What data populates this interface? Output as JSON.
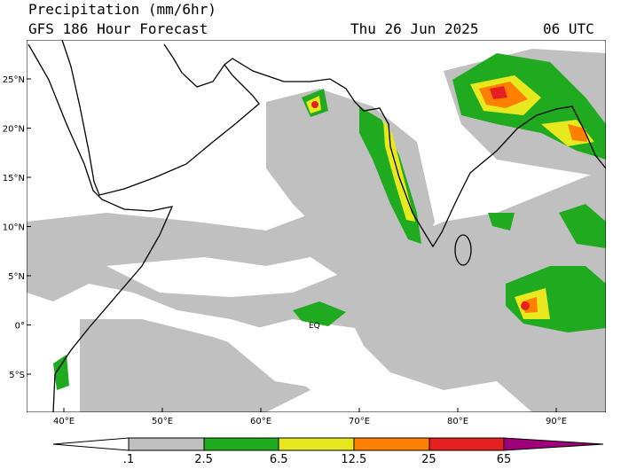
{
  "header": {
    "title": "Precipitation (mm/6hr)",
    "subtitle": "GFS 186 Hour Forecast",
    "date": "Thu 26 Jun 2025",
    "time": "06 UTC"
  },
  "map": {
    "lat_labels": [
      "25°N",
      "20°N",
      "15°N",
      "10°N",
      "5°N",
      "0°",
      "5°S"
    ],
    "lon_labels": [
      "40°E",
      "50°E",
      "60°E",
      "70°E",
      "80°E",
      "90°E"
    ],
    "annotation": "EQ"
  },
  "colorbar": {
    "labels": [
      ".1",
      "2.5",
      "6.5",
      "12.5",
      "25",
      "65"
    ]
  }
}
